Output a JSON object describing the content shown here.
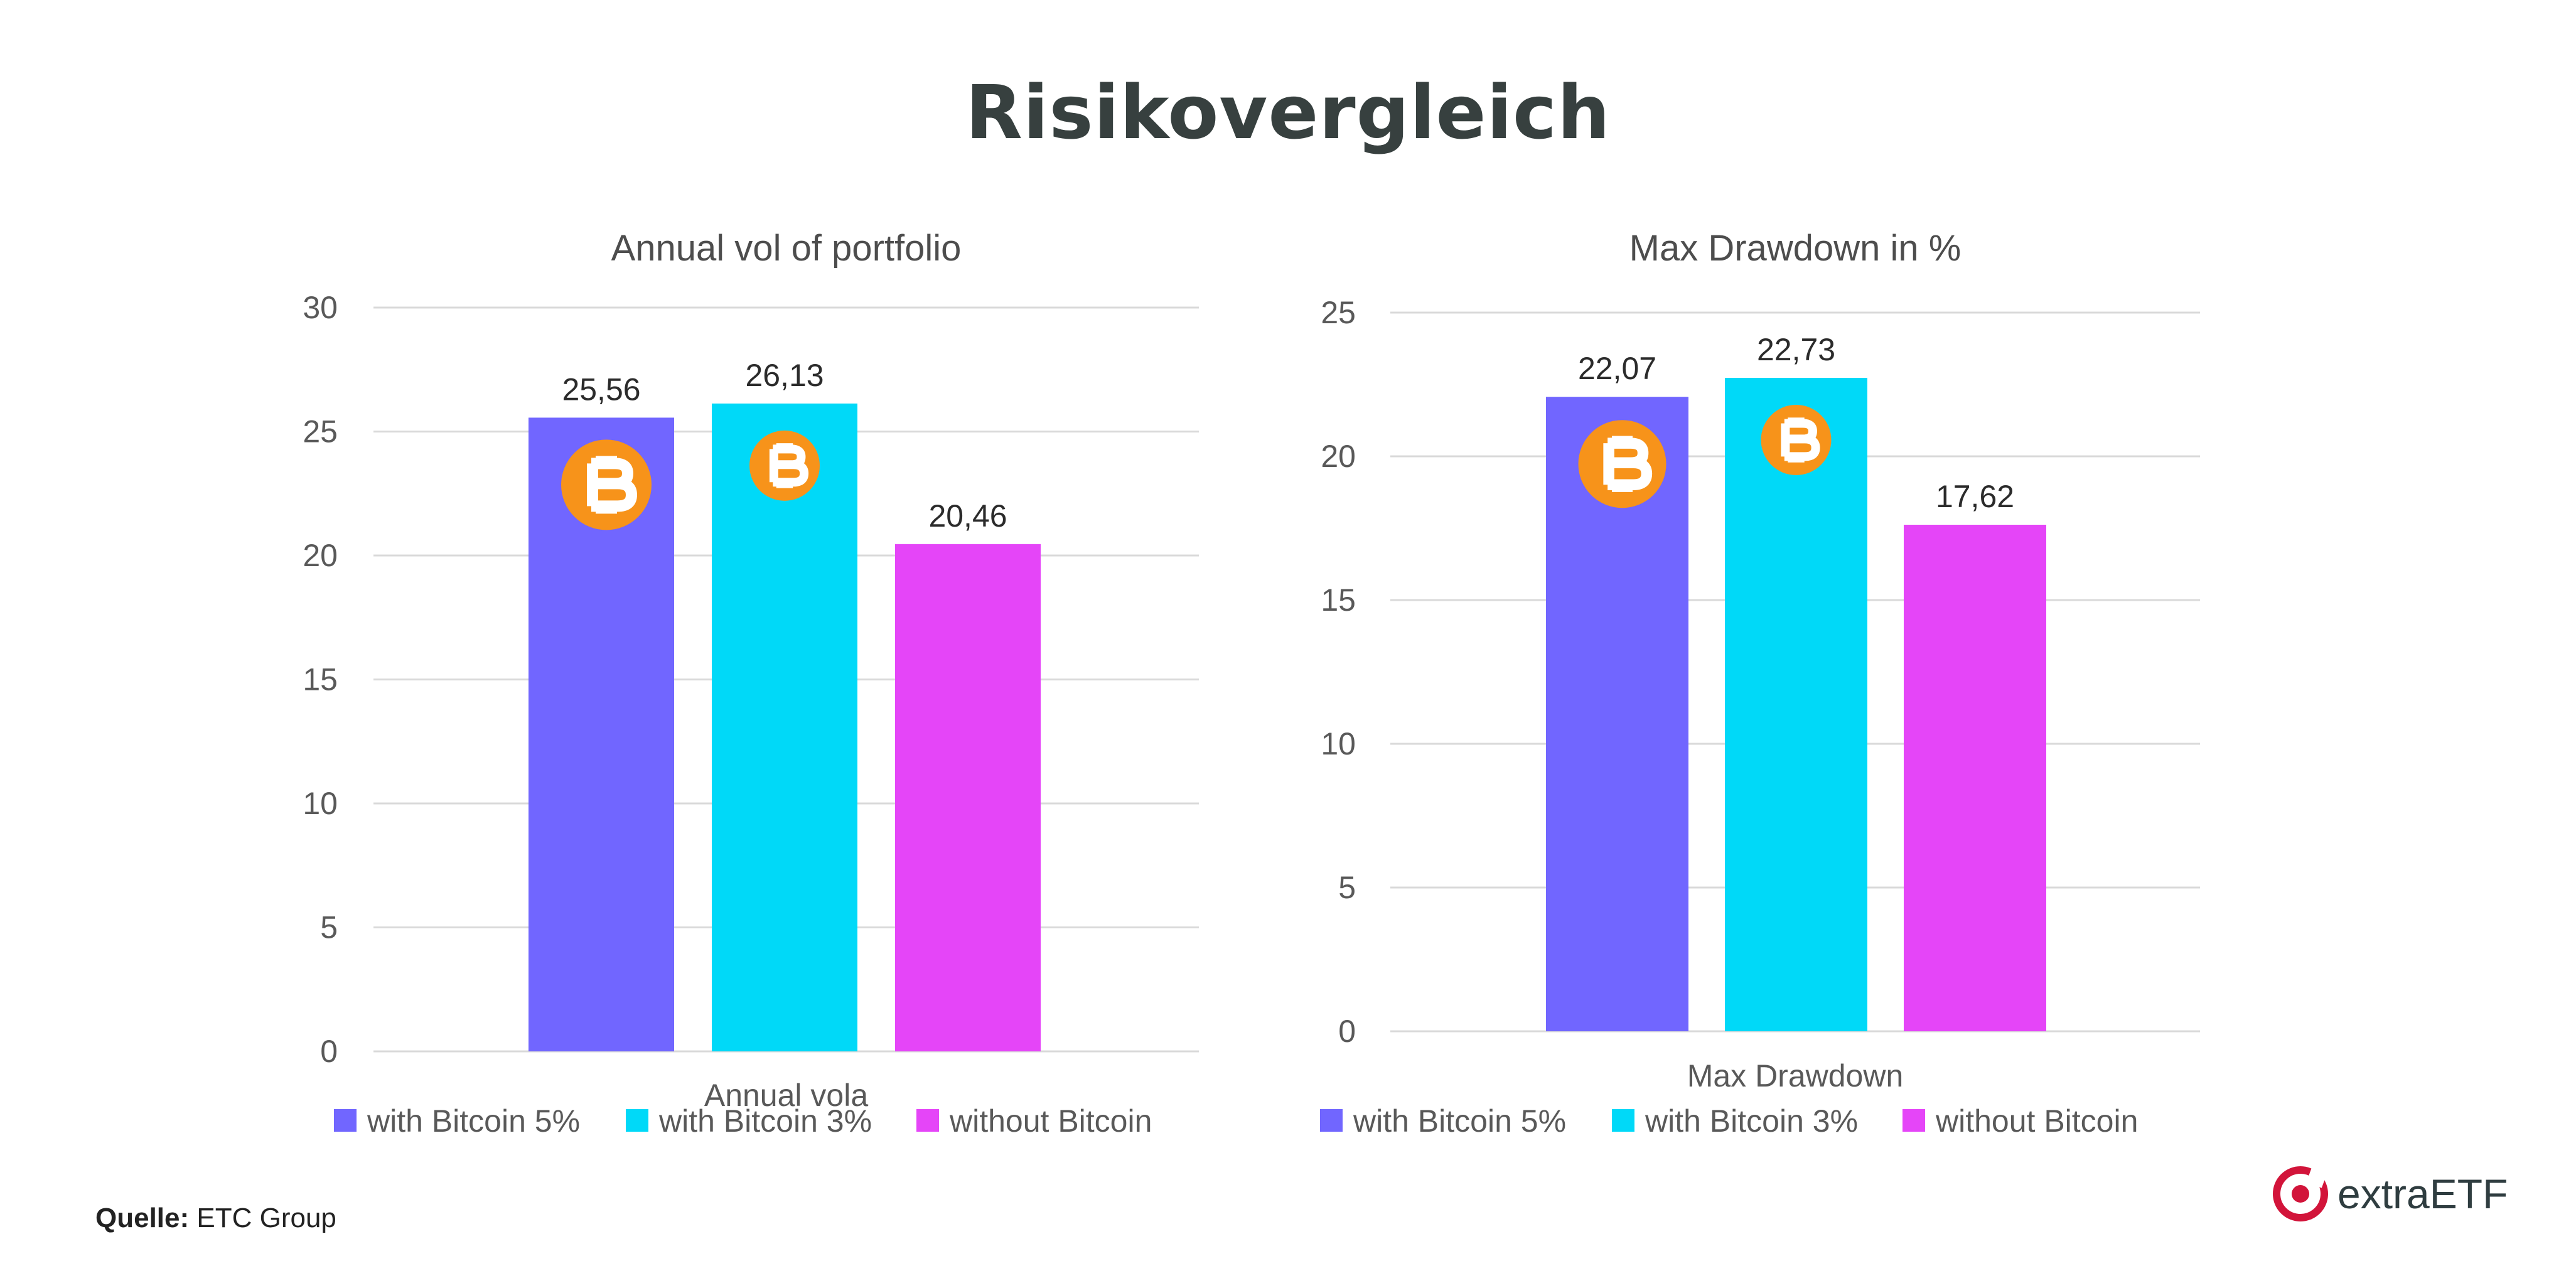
{
  "title": "Risikovergleich",
  "source": {
    "label": "Quelle:",
    "value": "ETC Group"
  },
  "brand": {
    "name": "extraETF",
    "color": "#d2143a"
  },
  "icons": {
    "bar_badge": "bitcoin-icon"
  },
  "colors": {
    "series": [
      "#7166ff",
      "#00d9f8",
      "#e545f8"
    ],
    "bitcoin": "#f7931a",
    "grid": "#d9d9d9"
  },
  "chart_data": [
    {
      "type": "bar",
      "title": "Annual vol of portfolio",
      "categories": [
        "Annual vola"
      ],
      "series": [
        {
          "name": "with Bitcoin 5%",
          "values": [
            25.56
          ],
          "label": "25,56",
          "badge": true
        },
        {
          "name": "with Bitcoin 3%",
          "values": [
            26.13
          ],
          "label": "26,13",
          "badge": true
        },
        {
          "name": "without Bitcoin",
          "values": [
            20.46
          ],
          "label": "20,46",
          "badge": false
        }
      ],
      "ylim": [
        0,
        30
      ],
      "yticks": [
        0,
        5,
        10,
        15,
        20,
        25,
        30
      ],
      "grid": true,
      "legend": "bottom"
    },
    {
      "type": "bar",
      "title": "Max Drawdown  in %",
      "categories": [
        "Max Drawdown"
      ],
      "series": [
        {
          "name": "with Bitcoin 5%",
          "values": [
            22.07
          ],
          "label": "22,07",
          "badge": true
        },
        {
          "name": "with Bitcoin 3%",
          "values": [
            22.73
          ],
          "label": "22,73",
          "badge": true
        },
        {
          "name": "without Bitcoin",
          "values": [
            17.62
          ],
          "label": "17,62",
          "badge": false
        }
      ],
      "ylim": [
        0,
        25
      ],
      "yticks": [
        0,
        5,
        10,
        15,
        20,
        25
      ],
      "grid": true,
      "legend": "bottom"
    }
  ]
}
